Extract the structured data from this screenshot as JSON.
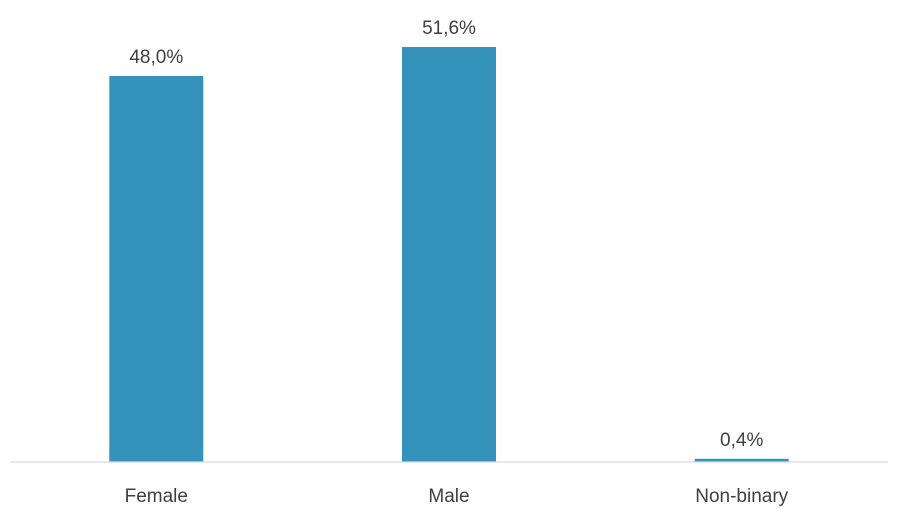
{
  "chart_data": {
    "type": "bar",
    "title": "",
    "xlabel": "",
    "ylabel": "",
    "categories": [
      "Female",
      "Male",
      "Non-binary"
    ],
    "values": [
      48.0,
      51.6,
      0.4
    ],
    "value_labels": [
      "48,0%",
      "51,6%",
      "0,4%"
    ],
    "unit": "%",
    "ylim": [
      0,
      55
    ],
    "grid": false,
    "legend": "none",
    "bar_color": "#3593bb",
    "axis_color": "#d9d9d9",
    "text_color": "#404040"
  }
}
